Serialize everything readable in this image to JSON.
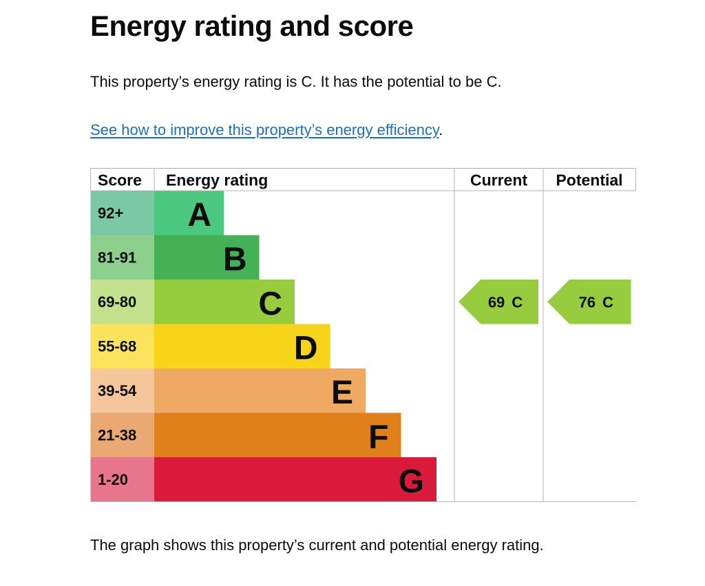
{
  "heading": "Energy rating and score",
  "intro": "This property’s energy rating is C. It has the potential to be C.",
  "link": {
    "text": "See how to improve this property’s energy efficiency",
    "suffix": "."
  },
  "table": {
    "headers": [
      "Score",
      "Energy rating",
      "Current",
      "Potential"
    ],
    "bands": [
      {
        "score": "92+",
        "rating": "A",
        "score_color": "#7bc8a4",
        "bar_color": "#4cc77f"
      },
      {
        "score": "81-91",
        "rating": "B",
        "score_color": "#8dcf8d",
        "bar_color": "#45b156"
      },
      {
        "score": "69-80",
        "rating": "C",
        "score_color": "#c3e08c",
        "bar_color": "#96cc3d"
      },
      {
        "score": "55-68",
        "rating": "D",
        "score_color": "#fbe35e",
        "bar_color": "#f7d41a"
      },
      {
        "score": "39-54",
        "rating": "E",
        "score_color": "#f5c69c",
        "bar_color": "#f0a962"
      },
      {
        "score": "21-38",
        "rating": "F",
        "score_color": "#eaa872",
        "bar_color": "#e0801b"
      },
      {
        "score": "1-20",
        "rating": "G",
        "score_color": "#e7758b",
        "bar_color": "#da1a3a"
      }
    ],
    "current": {
      "score": 69,
      "rating": "C",
      "color": "#96cc3d"
    },
    "potential": {
      "score": 76,
      "rating": "C",
      "color": "#96cc3d"
    }
  },
  "footer": "The graph shows this property’s current and potential energy rating."
}
